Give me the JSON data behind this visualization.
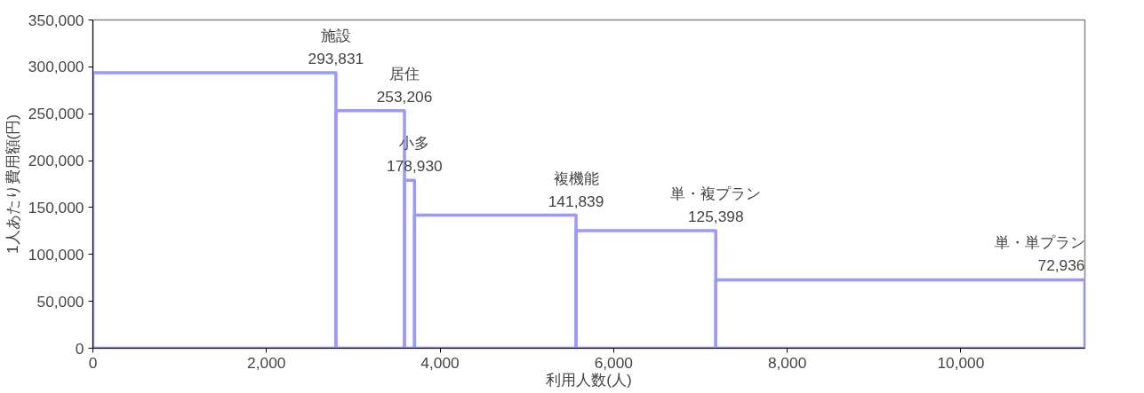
{
  "chart_data": {
    "type": "histogram",
    "xlabel": "利用人数(人)",
    "ylabel": "1人あたり費用額(円)",
    "bins": [
      0,
      2800,
      3590,
      3706,
      5567,
      7177,
      11430
    ],
    "values": [
      293831,
      253206,
      178930,
      141839,
      125398,
      72936
    ],
    "color": "#9999ff",
    "value_labels": [
      "293,831",
      "253,206",
      "178,930",
      "141,839",
      "125,398",
      "72,936"
    ],
    "grid": false,
    "xlim": [
      0,
      11430
    ],
    "xticks": [
      {
        "value": 0,
        "label": "0"
      },
      {
        "value": 2000,
        "label": "2,000"
      },
      {
        "value": 4000,
        "label": "4,000"
      },
      {
        "value": 6000,
        "label": "6,000"
      },
      {
        "value": 8000,
        "label": "8,000"
      },
      {
        "value": 10000,
        "label": "10,000"
      }
    ],
    "ylim": [
      0,
      350000
    ],
    "yticks": [
      {
        "value": 0,
        "label": "0"
      },
      {
        "value": 50000,
        "label": "50,000"
      },
      {
        "value": 100000,
        "label": "100,000"
      },
      {
        "value": 150000,
        "label": "150,000"
      },
      {
        "value": 200000,
        "label": "200,000"
      },
      {
        "value": 250000,
        "label": "250,000"
      },
      {
        "value": 300000,
        "label": "300,000"
      },
      {
        "value": 350000,
        "label": "350,000"
      }
    ],
    "annotations": [
      "施設",
      "居住",
      "小多",
      "複機能",
      "単・複プラン",
      "単・単プラン"
    ]
  }
}
